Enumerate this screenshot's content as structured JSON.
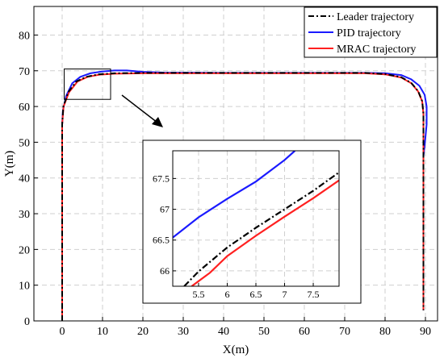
{
  "chart_data": {
    "type": "line",
    "xlabel": "X(m)",
    "ylabel": "Y(m)",
    "xlim": [
      -7,
      93
    ],
    "ylim": [
      0,
      88
    ],
    "xticks": [
      0,
      10,
      20,
      30,
      40,
      50,
      60,
      70,
      80,
      90
    ],
    "yticks": [
      0,
      10,
      20,
      30,
      40,
      50,
      60,
      70,
      80
    ],
    "grid": true,
    "legend_position": "top-right",
    "series": [
      {
        "name": "Leader trajectory",
        "color": "#000000",
        "style": "dashdot",
        "points": [
          [
            0,
            0
          ],
          [
            0,
            30
          ],
          [
            0,
            55
          ],
          [
            0.3,
            60
          ],
          [
            1.5,
            64
          ],
          [
            3.5,
            67
          ],
          [
            6,
            68.3
          ],
          [
            9,
            69
          ],
          [
            13,
            69.3
          ],
          [
            20,
            69.4
          ],
          [
            40,
            69.4
          ],
          [
            60,
            69.4
          ],
          [
            75,
            69.4
          ],
          [
            80,
            69.1
          ],
          [
            84,
            68.2
          ],
          [
            86.5,
            66.6
          ],
          [
            88.2,
            64.3
          ],
          [
            89.2,
            61.5
          ],
          [
            89.5,
            58
          ],
          [
            89.5,
            40
          ],
          [
            89.5,
            3
          ]
        ]
      },
      {
        "name": "PID trajectory",
        "color": "#1a1aff",
        "style": "solid",
        "points": [
          [
            0,
            0
          ],
          [
            0,
            30
          ],
          [
            0,
            55
          ],
          [
            0.2,
            59
          ],
          [
            1,
            63
          ],
          [
            2.5,
            66.5
          ],
          [
            4.5,
            68.3
          ],
          [
            7,
            69.3
          ],
          [
            10,
            69.8
          ],
          [
            13,
            70.1
          ],
          [
            16,
            70.1
          ],
          [
            20,
            69.7
          ],
          [
            25,
            69.5
          ],
          [
            40,
            69.4
          ],
          [
            60,
            69.4
          ],
          [
            75,
            69.4
          ],
          [
            80,
            69.3
          ],
          [
            84,
            68.8
          ],
          [
            86.5,
            67.6
          ],
          [
            88.5,
            65.8
          ],
          [
            89.8,
            63.3
          ],
          [
            90.3,
            60
          ],
          [
            90.3,
            55
          ],
          [
            89.8,
            49
          ],
          [
            89.5,
            46
          ],
          [
            89.5,
            3
          ]
        ]
      },
      {
        "name": "MRAC trajectory",
        "color": "#ff2020",
        "style": "solid",
        "points": [
          [
            0,
            0
          ],
          [
            0,
            30
          ],
          [
            0,
            55
          ],
          [
            0.35,
            60
          ],
          [
            1.7,
            64
          ],
          [
            3.8,
            67
          ],
          [
            6.3,
            68.3
          ],
          [
            9.2,
            68.9
          ],
          [
            13,
            69.2
          ],
          [
            20,
            69.3
          ],
          [
            40,
            69.3
          ],
          [
            60,
            69.3
          ],
          [
            75,
            69.3
          ],
          [
            80,
            69.0
          ],
          [
            84,
            68.1
          ],
          [
            86.5,
            66.5
          ],
          [
            88.2,
            64.2
          ],
          [
            89.2,
            61.4
          ],
          [
            89.5,
            58
          ],
          [
            89.5,
            40
          ],
          [
            89.5,
            3
          ]
        ]
      }
    ],
    "zoom_region": {
      "x": [
        0.5,
        12
      ],
      "y": [
        62,
        70.5
      ]
    },
    "inset": {
      "xlim": [
        5.05,
        7.95
      ],
      "ylim": [
        65.75,
        67.95
      ],
      "xticks": [
        5.5,
        6,
        6.5,
        7,
        7.5
      ],
      "yticks": [
        66,
        66.5,
        67,
        67.5
      ],
      "series": [
        {
          "name": "Leader trajectory",
          "points": [
            [
              5.25,
              65.75
            ],
            [
              5.5,
              65.99
            ],
            [
              6,
              66.38
            ],
            [
              6.5,
              66.7
            ],
            [
              7,
              67.0
            ],
            [
              7.5,
              67.3
            ],
            [
              7.95,
              67.6
            ]
          ]
        },
        {
          "name": "PID trajectory",
          "points": [
            [
              5.05,
              66.54
            ],
            [
              5.5,
              66.87
            ],
            [
              6,
              67.17
            ],
            [
              6.5,
              67.45
            ],
            [
              7,
              67.8
            ],
            [
              7.18,
              67.95
            ]
          ]
        },
        {
          "name": "MRAC trajectory",
          "points": [
            [
              5.38,
              65.75
            ],
            [
              5.7,
              65.97
            ],
            [
              6,
              66.24
            ],
            [
              6.5,
              66.57
            ],
            [
              7,
              66.88
            ],
            [
              7.5,
              67.18
            ],
            [
              7.95,
              67.47
            ]
          ]
        }
      ]
    }
  }
}
